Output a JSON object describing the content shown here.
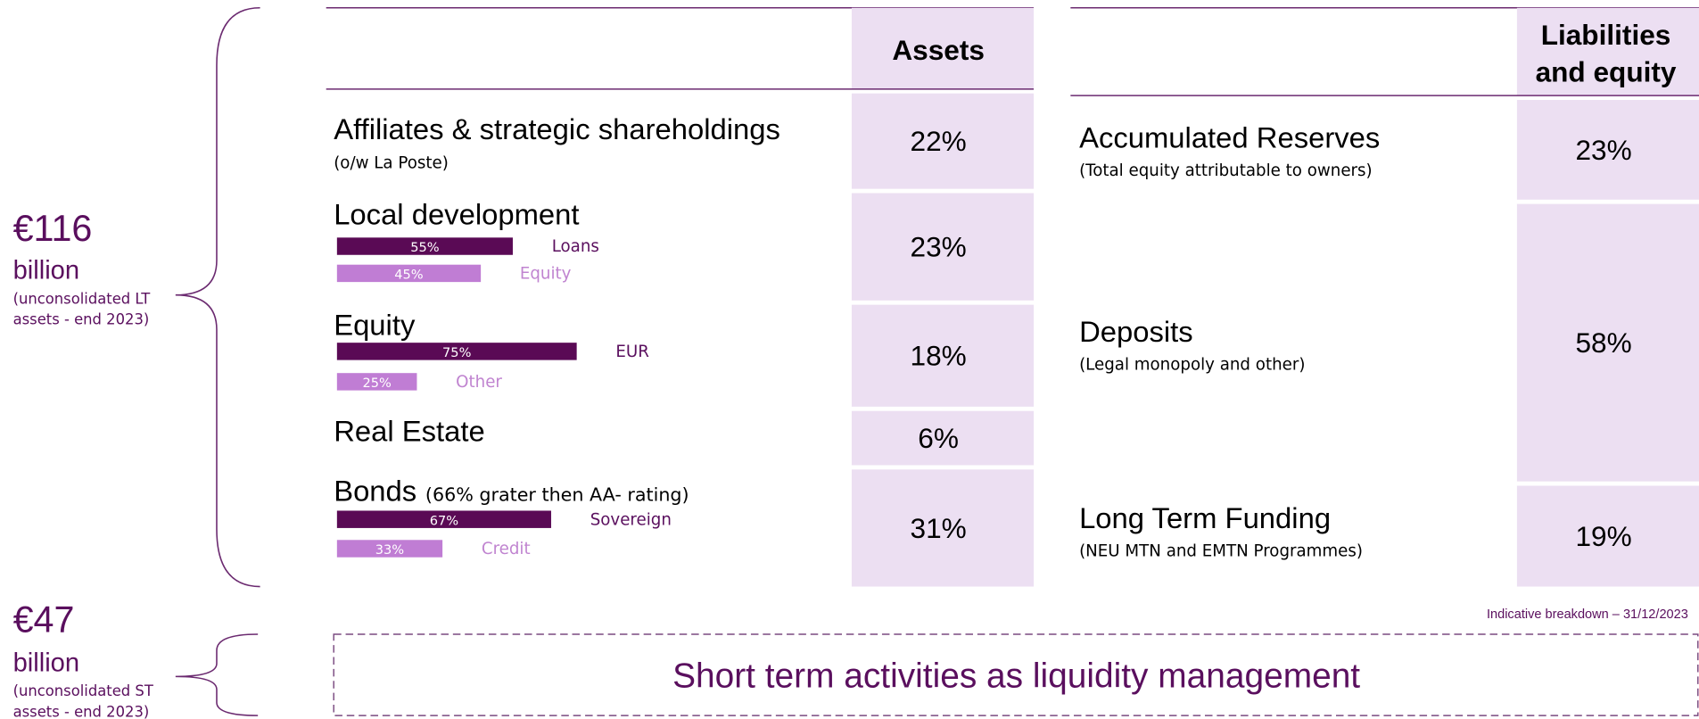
{
  "summary": {
    "lt": {
      "amount": "€116",
      "unit": "billion",
      "note_1": "(unconsolidated LT",
      "note_2": "assets - end 2023)"
    },
    "st": {
      "amount": "€47",
      "unit": "billion",
      "note_1": "(unconsolidated ST",
      "note_2": "assets - end 2023)"
    }
  },
  "assets": {
    "header": "Assets",
    "rows": [
      {
        "label": "Affiliates & strategic shareholdings",
        "sublabel": "(o/w La Poste)",
        "share": "22%"
      },
      {
        "label": "Local development",
        "share": "23%",
        "bars": [
          {
            "value": 55,
            "label": "55%",
            "name": "Loans"
          },
          {
            "value": 45,
            "label": "45%",
            "name": "Equity"
          }
        ]
      },
      {
        "label": "Equity",
        "share": "18%",
        "bars": [
          {
            "value": 75,
            "label": "75%",
            "name": "EUR"
          },
          {
            "value": 25,
            "label": "25%",
            "name": "Other"
          }
        ]
      },
      {
        "label": "Real Estate",
        "share": "6%"
      },
      {
        "label": "Bonds",
        "note": "(66% grater then AA- rating)",
        "share": "31%",
        "bars": [
          {
            "value": 67,
            "label": "67%",
            "name": "Sovereign"
          },
          {
            "value": 33,
            "label": "33%",
            "name": "Credit"
          }
        ]
      }
    ]
  },
  "liabilities": {
    "header_1": "Liabilities",
    "header_2": "and equity",
    "rows": [
      {
        "label": "Accumulated Reserves",
        "sublabel": "(Total equity attributable to owners)",
        "share": "23%"
      },
      {
        "label": "Deposits",
        "sublabel": "(Legal monopoly and other)",
        "share": "58%"
      },
      {
        "label": "Long Term Funding",
        "sublabel": "(NEU MTN and EMTN Programmes)",
        "share": "19%"
      }
    ]
  },
  "footnote": "Indicative breakdown – 31/12/2023",
  "short_term": "Short term activities as liquidity management"
}
